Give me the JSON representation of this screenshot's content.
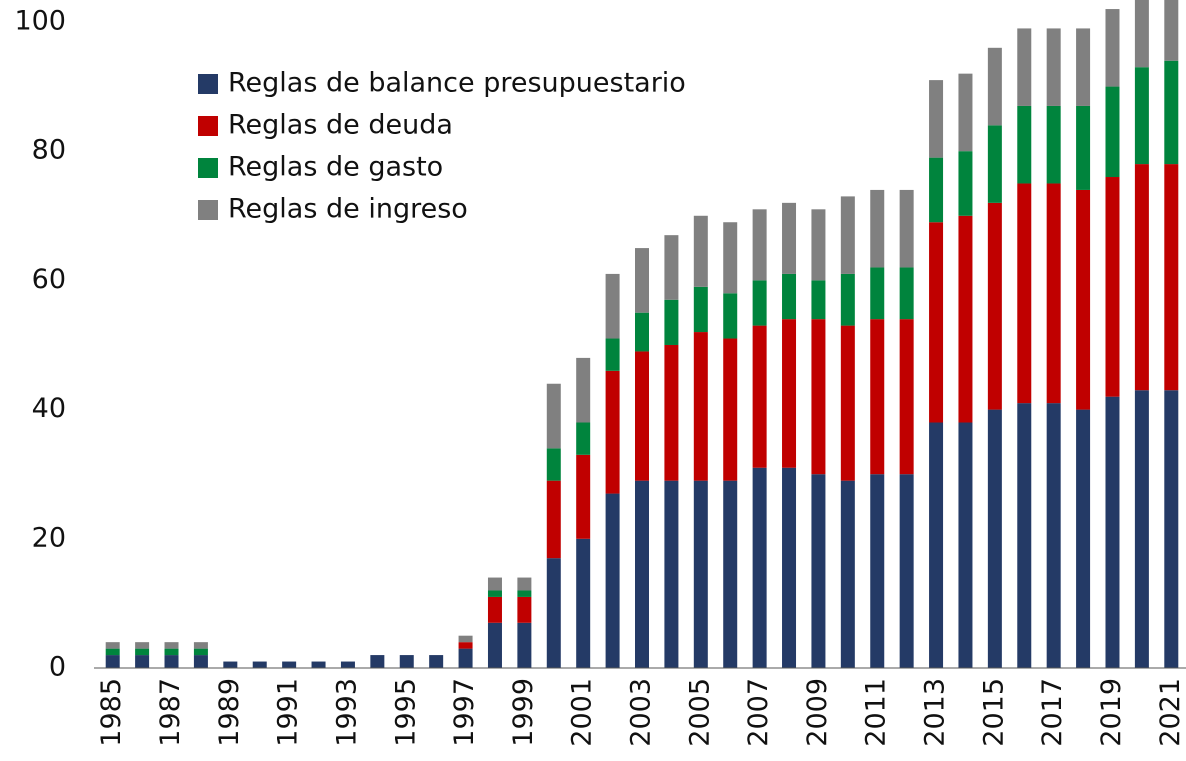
{
  "chart_data": {
    "type": "stacked-bar",
    "categories": [
      "1985",
      null,
      "1987",
      null,
      "1989",
      null,
      "1991",
      null,
      "1993",
      null,
      "1995",
      null,
      "1997",
      null,
      "1999",
      null,
      "2001",
      null,
      "2003",
      null,
      "2005",
      null,
      "2007",
      null,
      "2009",
      null,
      "2011",
      null,
      "2013",
      null,
      "2015",
      null,
      "2017",
      null,
      "2019",
      null,
      "2021"
    ],
    "series": [
      {
        "name": "Reglas de balance presupuestario",
        "color": "#243a66",
        "values": [
          2,
          2,
          2,
          2,
          1,
          1,
          1,
          1,
          1,
          2,
          2,
          2,
          3,
          7,
          7,
          17,
          20,
          27,
          29,
          29,
          29,
          29,
          31,
          31,
          30,
          29,
          30,
          30,
          38,
          38,
          40,
          41,
          41,
          40,
          42,
          43,
          43
        ]
      },
      {
        "name": "Reglas de deuda",
        "color": "#c00000",
        "values": [
          0,
          0,
          0,
          0,
          0,
          0,
          0,
          0,
          0,
          0,
          0,
          0,
          1,
          4,
          4,
          12,
          13,
          19,
          20,
          21,
          23,
          22,
          22,
          23,
          24,
          24,
          24,
          24,
          31,
          32,
          32,
          34,
          34,
          34,
          34,
          35,
          35
        ]
      },
      {
        "name": "Reglas de gasto",
        "color": "#00843d",
        "values": [
          1,
          1,
          1,
          1,
          0,
          0,
          0,
          0,
          0,
          0,
          0,
          0,
          0,
          1,
          1,
          5,
          5,
          5,
          6,
          7,
          7,
          7,
          7,
          7,
          6,
          8,
          8,
          8,
          10,
          10,
          12,
          12,
          12,
          13,
          14,
          15,
          16
        ]
      },
      {
        "name": "Reglas de ingreso",
        "color": "#808080",
        "values": [
          1,
          1,
          1,
          1,
          0,
          0,
          0,
          0,
          0,
          0,
          0,
          0,
          1,
          2,
          2,
          10,
          10,
          10,
          10,
          10,
          11,
          11,
          11,
          11,
          11,
          12,
          12,
          12,
          12,
          12,
          12,
          12,
          12,
          12,
          12,
          12,
          12
        ]
      }
    ],
    "ylim": [
      0,
      103.4
    ],
    "yticks": [
      0,
      20,
      40,
      60,
      80,
      100
    ],
    "grid": false,
    "legend": "upper-left"
  }
}
